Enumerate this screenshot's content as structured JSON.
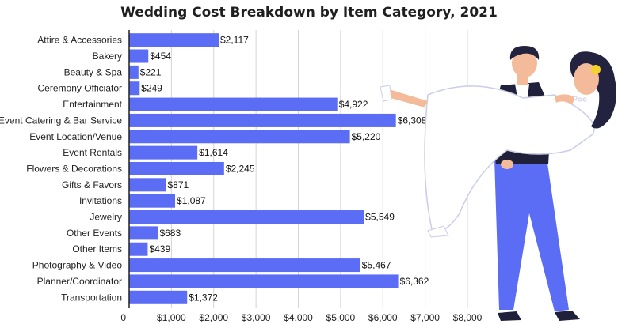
{
  "chart_data": {
    "type": "bar",
    "orientation": "horizontal",
    "title": "Wedding Cost Breakdown by Item Category, 2021",
    "categories": [
      "Attire & Accessories",
      "Bakery",
      "Beauty & Spa",
      "Ceremony Officiator",
      "Entertainment",
      "Event Catering & Bar Service",
      "Event Location/Venue",
      "Event Rentals",
      "Flowers & Decorations",
      "Gifts & Favors",
      "Invitations",
      "Jewelry",
      "Other Events",
      "Other Items",
      "Photography & Video",
      "Planner/Coordinator",
      "Transportation"
    ],
    "values": [
      2117,
      454,
      221,
      249,
      4922,
      6308,
      5220,
      1614,
      2245,
      871,
      1087,
      5549,
      683,
      439,
      5467,
      6362,
      1372
    ],
    "value_labels": [
      "$2,117",
      "$454",
      "$221",
      "$249",
      "$4,922",
      "$6,308",
      "$5,220",
      "$1,614",
      "$2,245",
      "$871",
      "$1,087",
      "$5,549",
      "$683",
      "$439",
      "$5,467",
      "$6,362",
      "$1,372"
    ],
    "xlim": [
      0,
      8000
    ],
    "xticks": [
      0,
      1000,
      2000,
      3000,
      4000,
      5000,
      6000,
      7000,
      8000
    ],
    "xtick_labels": [
      "0",
      "$1,000",
      "$2,000",
      "$3,000",
      "$4,000",
      "$5,000",
      "$6,000",
      "$7,000",
      "$8,000"
    ],
    "grid": "vertical",
    "bar_color": "#5b6cf5"
  },
  "illustration": {
    "colors": {
      "groom_pants": "#5b6cf5",
      "groom_vest": "#20203a",
      "dress": "#ffffff",
      "dress_outline": "#c9cde8",
      "hair": "#23233f",
      "skin": "#f3bb9a",
      "flower": "#f6d12a"
    }
  }
}
